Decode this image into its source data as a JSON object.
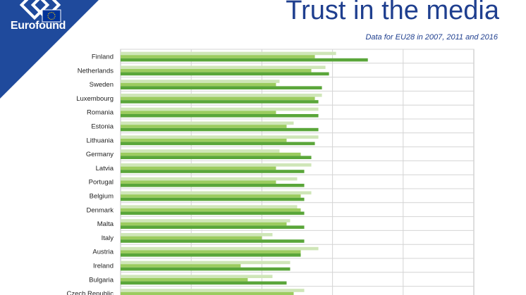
{
  "logo": {
    "text": "Eurofound",
    "colors": {
      "corner": "#1f4a9c",
      "flag": "#003399",
      "stars": "#ffcc00"
    }
  },
  "header": {
    "title": "Trust in the media",
    "subtitle": "Data for EU28 in 2007, 2011 and 2016"
  },
  "colors": {
    "s2007": "#cfe6b8",
    "s2011": "#9ccc5f",
    "s2016": "#5aa63a",
    "grid": "#d4d4d4",
    "frame": "#bdbdbd"
  },
  "chart_data": {
    "type": "bar",
    "orientation": "horizontal",
    "title": "Trust in the media",
    "subtitle": "Data for EU28 in 2007, 2011 and 2016",
    "xlim": [
      0,
      10
    ],
    "grid": true,
    "categories": [
      "Finland",
      "Netherlands",
      "Sweden",
      "Luxembourg",
      "Romania",
      "Estonia",
      "Lithuania",
      "Germany",
      "Latvia",
      "Portugal",
      "Belgium",
      "Denmark",
      "Malta",
      "Italy",
      "Austria",
      "Ireland",
      "Bulgaria",
      "Czech Republic"
    ],
    "series": [
      {
        "name": "2007",
        "values": [
          6.1,
          5.8,
          4.5,
          5.7,
          5.6,
          4.9,
          5.6,
          4.5,
          5.4,
          5.0,
          5.4,
          5.0,
          4.8,
          4.3,
          5.6,
          4.8,
          4.3,
          5.2
        ]
      },
      {
        "name": "2011",
        "values": [
          5.5,
          5.4,
          4.4,
          5.5,
          4.4,
          4.7,
          4.7,
          5.1,
          4.4,
          4.4,
          5.1,
          5.1,
          4.7,
          4.0,
          5.1,
          3.4,
          3.6,
          4.9
        ]
      },
      {
        "name": "2016",
        "values": [
          7.0,
          5.9,
          5.7,
          5.6,
          5.6,
          5.6,
          5.5,
          5.4,
          5.2,
          5.2,
          5.2,
          5.2,
          5.2,
          5.2,
          5.1,
          4.8,
          4.7,
          4.8
        ]
      }
    ]
  }
}
